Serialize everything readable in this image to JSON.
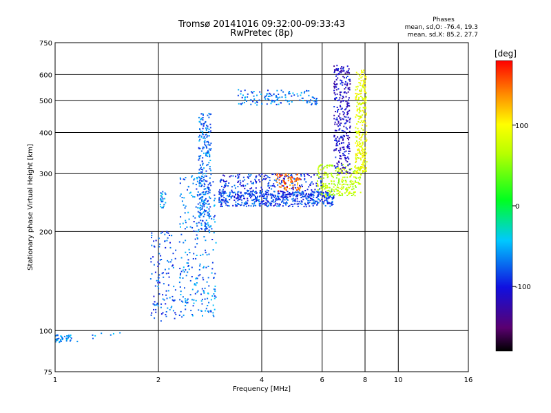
{
  "chart_data": {
    "type": "scatter",
    "title": "Tromsø 20141016 09:32:00-09:33:43",
    "subtitle": "RwPretec (8p)",
    "xlabel": "Frequency [MHz]",
    "ylabel": "Stationary phase Virtual Height [km]",
    "x_scale": "log",
    "y_scale": "log",
    "xlim": [
      1,
      16
    ],
    "ylim": [
      75,
      750
    ],
    "x_ticks": [
      1,
      2,
      4,
      6,
      8,
      10,
      16
    ],
    "y_ticks": [
      75,
      100,
      200,
      300,
      400,
      500,
      600,
      750
    ],
    "grid": true,
    "phase_info": {
      "title": "Phases",
      "line_o": "mean, sd,O: -76.4, 19.3",
      "line_x": "mean, sd,X: 85.2, 27.7"
    },
    "colorbar": {
      "label": "[deg]",
      "range": [
        -180,
        180
      ],
      "ticks": [
        100,
        0,
        -100
      ],
      "colormap": "rainbow: black-purple-blue-cyan-green-yellow-orange-red"
    },
    "clusters": [
      {
        "desc": "lowest trace",
        "f": [
          1.0,
          1.12
        ],
        "h": [
          92,
          97
        ],
        "phase": -60,
        "n": 40
      },
      {
        "desc": "scatter near 1.2-1.5",
        "f": [
          1.15,
          1.55
        ],
        "h": [
          92,
          100
        ],
        "phase": -55,
        "n": 8
      },
      {
        "desc": "E region rise",
        "f": [
          1.9,
          2.25
        ],
        "h": [
          105,
          200
        ],
        "phase": -80,
        "n": 120
      },
      {
        "desc": "Es near 2.05",
        "f": [
          2.02,
          2.1
        ],
        "h": [
          235,
          265
        ],
        "phase": -60,
        "n": 25
      },
      {
        "desc": "F1 cusp",
        "f": [
          2.3,
          2.95
        ],
        "h": [
          110,
          300
        ],
        "phase": -70,
        "n": 260
      },
      {
        "desc": "F1 vertical",
        "f": [
          2.62,
          2.85
        ],
        "h": [
          200,
          460
        ],
        "phase": -70,
        "n": 260
      },
      {
        "desc": "F2 bottom O",
        "f": [
          3.0,
          6.5
        ],
        "h": [
          238,
          265
        ],
        "phase": -85,
        "n": 480
      },
      {
        "desc": "F2 band O",
        "f": [
          3.0,
          6.0
        ],
        "h": [
          255,
          300
        ],
        "phase": -90,
        "n": 260
      },
      {
        "desc": "F2 X orange",
        "f": [
          4.4,
          5.2
        ],
        "h": [
          265,
          300
        ],
        "phase": 150,
        "n": 70
      },
      {
        "desc": "F2 X green",
        "f": [
          5.8,
          7.8
        ],
        "h": [
          255,
          320
        ],
        "phase": 70,
        "n": 240
      },
      {
        "desc": "O cusp",
        "f": [
          6.5,
          7.25
        ],
        "h": [
          300,
          640
        ],
        "phase": -110,
        "n": 300
      },
      {
        "desc": "X cusp",
        "f": [
          7.5,
          8.1
        ],
        "h": [
          300,
          620
        ],
        "phase": 90,
        "n": 260
      },
      {
        "desc": "spread F",
        "f": [
          3.4,
          5.8
        ],
        "h": [
          485,
          540
        ],
        "phase": -70,
        "n": 130
      }
    ]
  }
}
